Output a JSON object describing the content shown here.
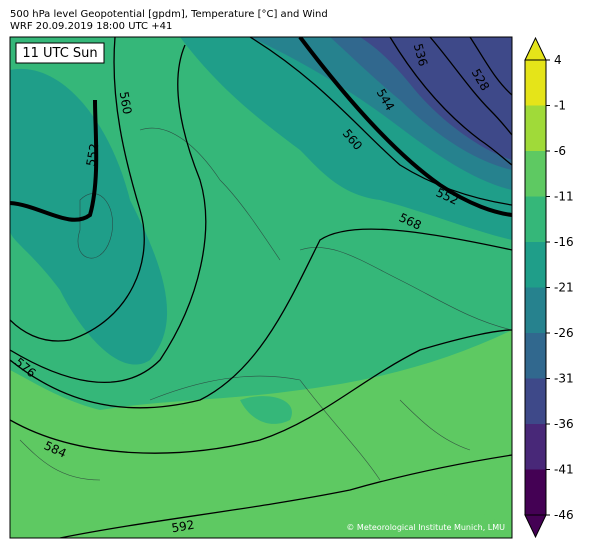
{
  "header": {
    "line1": "500 hPa level Geopotential [gpdm], Temperature [°C] and Wind",
    "line2": "WRF 20.09.2019 18:00 UTC +41"
  },
  "time_label": "11 UTC Sun",
  "credit": "© Meteorological Institute Munich, LMU",
  "contour_labels": [
    "552",
    "560",
    "544",
    "536",
    "528",
    "560",
    "552",
    "568",
    "576",
    "584",
    "592"
  ],
  "colorbar": {
    "ticks": [
      4,
      -1,
      -6,
      -11,
      -16,
      -21,
      -26,
      -31,
      -36,
      -41,
      -46
    ],
    "colors": [
      "#e5e419",
      "#a0da39",
      "#5ec962",
      "#35b779",
      "#1f9e89",
      "#26828e",
      "#31688e",
      "#3e4989",
      "#482878",
      "#440154"
    ]
  }
}
